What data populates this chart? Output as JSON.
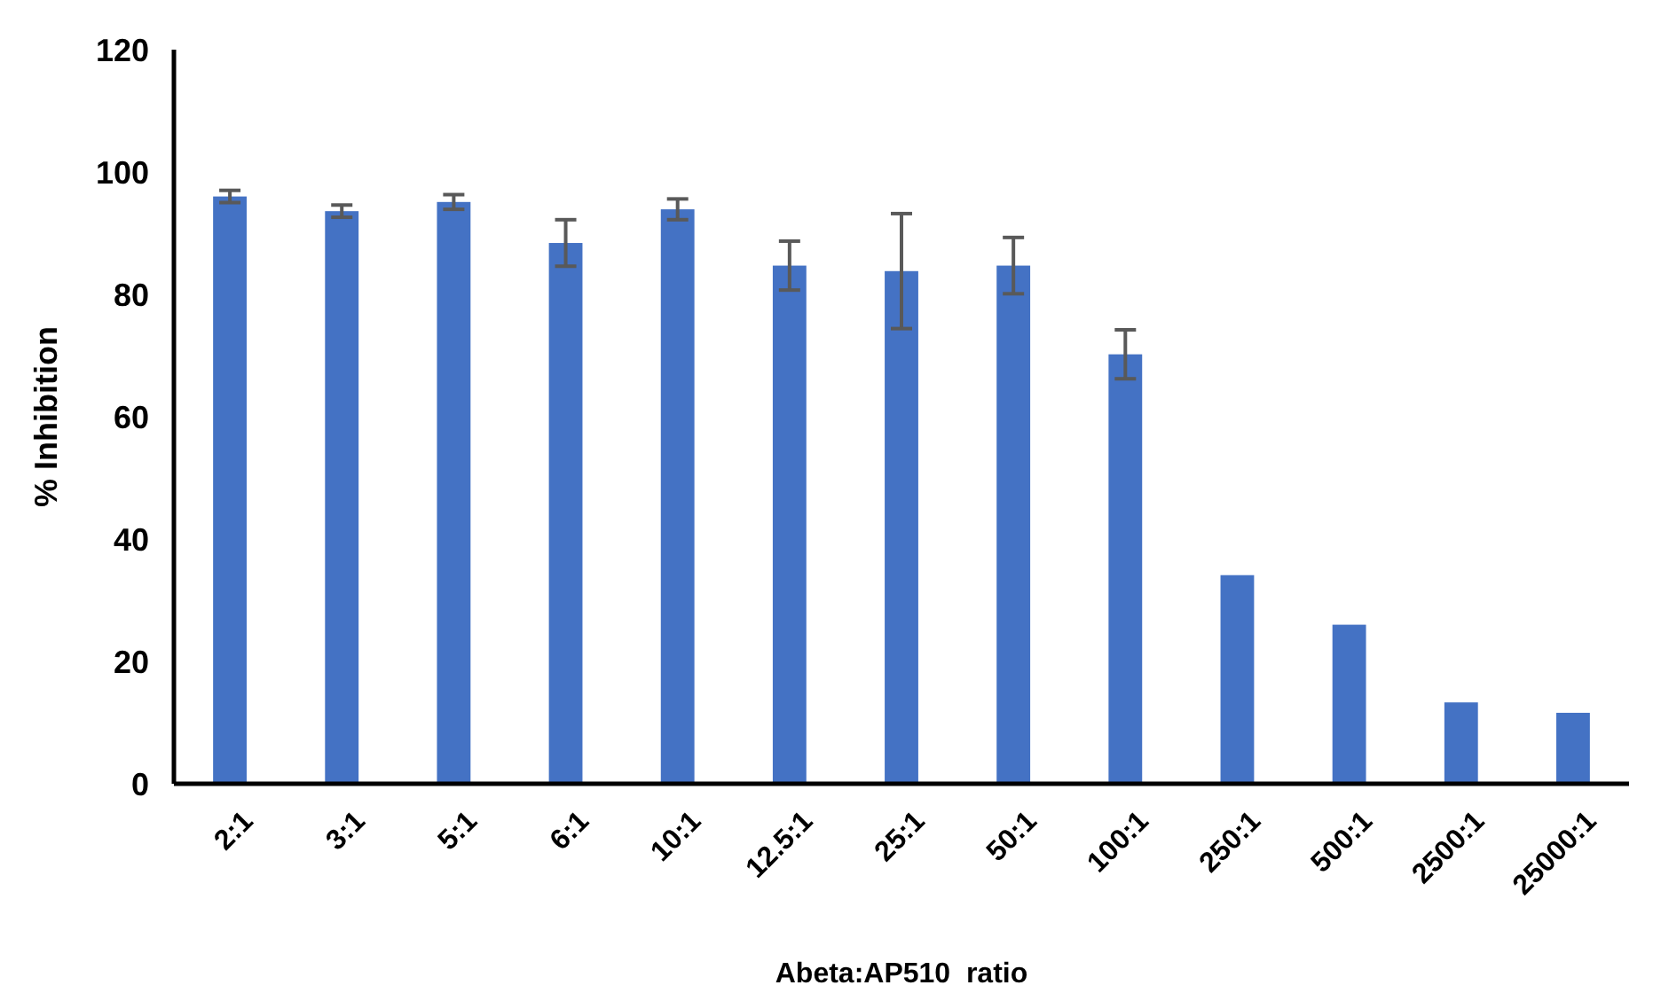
{
  "chart_data": {
    "type": "bar",
    "xlabel": "Abeta:AP510  ratio",
    "ylabel": "% Inhibition",
    "categories": [
      "2:1",
      "3:1",
      "5:1",
      "6:1",
      "10:1",
      "12.5:1",
      "25:1",
      "50:1",
      "100:1",
      "250:1",
      "500:1",
      "2500:1",
      "25000:1"
    ],
    "values": [
      96,
      93.6,
      95.1,
      88.4,
      93.9,
      84.7,
      83.8,
      84.7,
      70.2,
      34.1,
      26,
      13.3,
      11.6
    ],
    "errors": [
      1,
      1,
      1.2,
      3.8,
      1.7,
      4,
      9.4,
      4.6,
      4,
      null,
      null,
      null,
      null
    ],
    "color": "#4472c4",
    "ylim": [
      0,
      120
    ],
    "yticks": [
      0,
      20,
      40,
      60,
      80,
      100,
      120
    ],
    "grid": false
  }
}
